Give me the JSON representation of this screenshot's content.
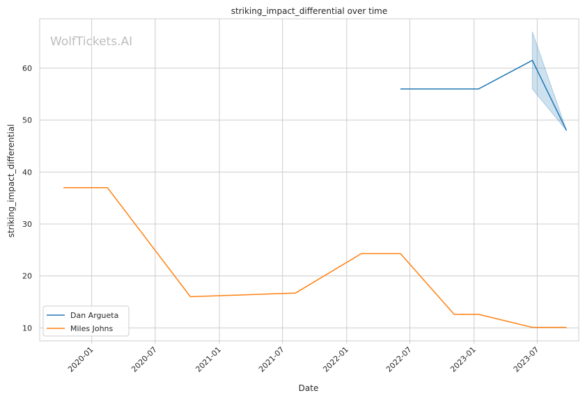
{
  "chart_data": {
    "type": "line",
    "title": "striking_impact_differential over time",
    "xlabel": "Date",
    "ylabel": "striking_impact_differential",
    "watermark": "WolfTickets.AI",
    "xlim": [
      "2019-08-05",
      "2023-10-28"
    ],
    "ylim": [
      7.5,
      69.5
    ],
    "x_ticks": [
      "2020-01",
      "2020-07",
      "2021-01",
      "2021-07",
      "2022-01",
      "2022-07",
      "2023-01",
      "2023-07"
    ],
    "y_ticks": [
      10,
      20,
      30,
      40,
      50,
      60
    ],
    "grid": true,
    "legend_position": "lower-left",
    "series": [
      {
        "name": "Dan Argueta",
        "color": "#1f77b4",
        "x": [
          "2022-06-04",
          "2023-01-14",
          "2023-06-17",
          "2023-09-23"
        ],
        "y": [
          56.0,
          56.0,
          61.5,
          48.0
        ],
        "band": {
          "x": [
            "2023-06-17",
            "2023-09-23"
          ],
          "lower": [
            56.0,
            48.0
          ],
          "upper": [
            67.0,
            48.0
          ]
        }
      },
      {
        "name": "Miles Johns",
        "color": "#ff7f0e",
        "x": [
          "2019-10-12",
          "2020-02-15",
          "2020-10-10",
          "2021-08-07",
          "2022-02-12",
          "2022-06-04",
          "2022-11-05",
          "2023-01-14",
          "2023-06-17",
          "2023-09-23"
        ],
        "y": [
          37.0,
          37.0,
          16.0,
          16.7,
          24.3,
          24.3,
          12.6,
          12.6,
          10.1,
          10.1
        ]
      }
    ]
  }
}
